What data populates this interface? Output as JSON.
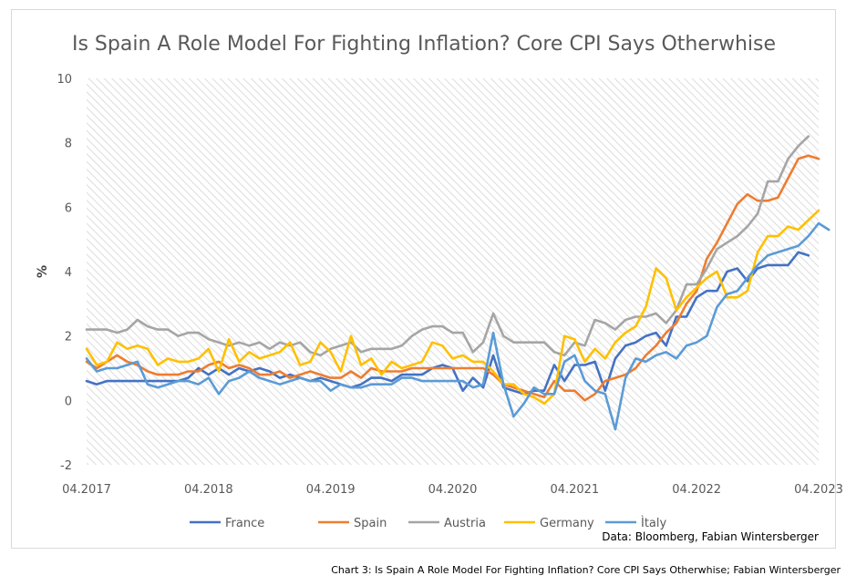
{
  "caption": "Chart 3: Is Spain A Role Model For Fighting Inflation? Core CPI Says Otherwhise; Fabian Wintersberger",
  "chart_data": {
    "type": "line",
    "title": "Is Spain A Role Model For Fighting Inflation? Core CPI Says Otherwhise",
    "xlabel": "",
    "ylabel": "%",
    "ylim": [
      -2,
      10
    ],
    "yticks": [
      -2,
      0,
      2,
      4,
      6,
      8,
      10
    ],
    "x_start": "04.2017",
    "x_tick_labels": [
      "04.2017",
      "04.2018",
      "04.2019",
      "04.2020",
      "04.2021",
      "04.2022",
      "04.2023"
    ],
    "grid": "hatched plot area",
    "legend_position": "bottom",
    "source": "Data: Bloomberg, Fabian Wintersberger",
    "series": [
      {
        "name": "France",
        "color": "#4472C4",
        "values": [
          0.6,
          0.5,
          0.6,
          0.6,
          0.6,
          0.6,
          0.6,
          0.6,
          0.6,
          0.6,
          0.7,
          1.0,
          0.8,
          1.0,
          0.8,
          1.0,
          0.9,
          1.0,
          0.9,
          0.7,
          0.8,
          0.7,
          0.6,
          0.7,
          0.6,
          0.5,
          0.4,
          0.5,
          0.7,
          0.7,
          0.6,
          0.8,
          0.8,
          0.8,
          1.0,
          1.1,
          1.0,
          0.3,
          0.7,
          0.4,
          1.4,
          0.4,
          0.3,
          0.2,
          0.3,
          0.3,
          1.1,
          0.6,
          1.1,
          1.1,
          1.2,
          0.3,
          1.3,
          1.7,
          1.8,
          2.0,
          2.1,
          1.7,
          2.6,
          2.6,
          3.2,
          3.4,
          3.4,
          4.0,
          4.1,
          3.7,
          4.1,
          4.2,
          4.2,
          4.2,
          4.6,
          4.5
        ]
      },
      {
        "name": "Spain",
        "color": "#ED7D31",
        "values": [
          1.2,
          1.0,
          1.2,
          1.4,
          1.2,
          1.1,
          0.9,
          0.8,
          0.8,
          0.8,
          0.9,
          0.9,
          1.1,
          1.2,
          1.0,
          1.1,
          1.0,
          0.8,
          0.8,
          0.9,
          0.7,
          0.8,
          0.9,
          0.8,
          0.7,
          0.7,
          0.9,
          0.7,
          1.0,
          0.9,
          0.9,
          0.9,
          1.0,
          1.0,
          1.0,
          1.0,
          1.0,
          1.0,
          1.0,
          1.0,
          0.8,
          0.5,
          0.4,
          0.3,
          0.2,
          0.1,
          0.6,
          0.3,
          0.3,
          0.0,
          0.2,
          0.6,
          0.7,
          0.8,
          1.0,
          1.4,
          1.7,
          2.1,
          2.4,
          3.0,
          3.4,
          4.4,
          4.9,
          5.5,
          6.1,
          6.4,
          6.2,
          6.2,
          6.3,
          6.9,
          7.5,
          7.6,
          7.5
        ]
      },
      {
        "name": "Austria",
        "color": "#A5A5A5",
        "values": [
          2.2,
          2.2,
          2.2,
          2.1,
          2.2,
          2.5,
          2.3,
          2.2,
          2.2,
          2.0,
          2.1,
          2.1,
          1.9,
          1.8,
          1.7,
          1.8,
          1.7,
          1.8,
          1.6,
          1.8,
          1.7,
          1.8,
          1.5,
          1.4,
          1.6,
          1.7,
          1.8,
          1.5,
          1.6,
          1.6,
          1.6,
          1.7,
          2.0,
          2.2,
          2.3,
          2.3,
          2.1,
          2.1,
          1.5,
          1.8,
          2.7,
          2.0,
          1.8,
          1.8,
          1.8,
          1.8,
          1.5,
          1.4,
          1.8,
          1.7,
          2.5,
          2.4,
          2.2,
          2.5,
          2.6,
          2.6,
          2.7,
          2.4,
          2.8,
          3.6,
          3.6,
          4.1,
          4.7,
          4.9,
          5.1,
          5.4,
          5.8,
          6.8,
          6.8,
          7.5,
          7.9,
          8.2
        ]
      },
      {
        "name": "Germany",
        "color": "#FFC000",
        "values": [
          1.6,
          1.1,
          1.2,
          1.8,
          1.6,
          1.7,
          1.6,
          1.1,
          1.3,
          1.2,
          1.2,
          1.3,
          1.6,
          0.9,
          1.9,
          1.2,
          1.5,
          1.3,
          1.4,
          1.5,
          1.8,
          1.1,
          1.2,
          1.8,
          1.5,
          0.9,
          2.0,
          1.1,
          1.3,
          0.8,
          1.2,
          1.0,
          1.1,
          1.2,
          1.8,
          1.7,
          1.3,
          1.4,
          1.2,
          1.2,
          0.9,
          0.5,
          0.5,
          0.2,
          0.1,
          -0.1,
          0.2,
          2.0,
          1.9,
          1.2,
          1.6,
          1.3,
          1.8,
          2.1,
          2.3,
          2.9,
          4.1,
          3.8,
          2.8,
          3.2,
          3.5,
          3.8,
          4.0,
          3.2,
          3.2,
          3.4,
          4.6,
          5.1,
          5.1,
          5.4,
          5.3,
          5.6,
          5.9
        ]
      },
      {
        "name": "Ìtaly",
        "color": "#5B9BD5",
        "values": [
          1.3,
          0.9,
          1.0,
          1.0,
          1.1,
          1.2,
          0.5,
          0.4,
          0.5,
          0.6,
          0.6,
          0.5,
          0.7,
          0.2,
          0.6,
          0.7,
          0.9,
          0.7,
          0.6,
          0.5,
          0.6,
          0.7,
          0.6,
          0.6,
          0.3,
          0.5,
          0.4,
          0.4,
          0.5,
          0.5,
          0.5,
          0.7,
          0.7,
          0.6,
          0.6,
          0.6,
          0.6,
          0.6,
          0.4,
          0.5,
          2.1,
          0.5,
          -0.5,
          -0.1,
          0.4,
          0.2,
          0.2,
          1.2,
          1.4,
          0.6,
          0.3,
          0.2,
          -0.9,
          0.7,
          1.3,
          1.2,
          1.4,
          1.5,
          1.3,
          1.7,
          1.8,
          2.0,
          2.9,
          3.3,
          3.4,
          3.8,
          4.2,
          4.5,
          4.6,
          4.7,
          4.8,
          5.1,
          5.5,
          5.3
        ]
      }
    ]
  }
}
